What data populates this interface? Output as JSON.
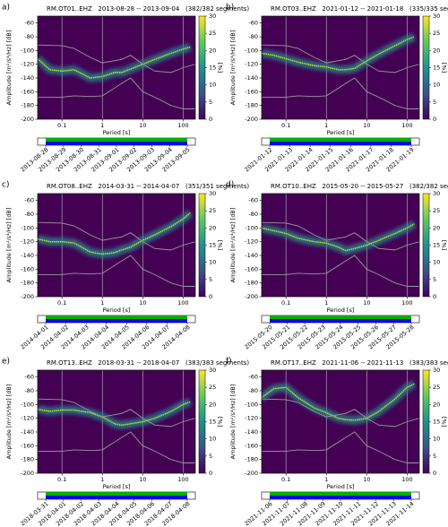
{
  "chart_data": [
    {
      "type": "ppsd",
      "label": "a)",
      "title": "RM.OT01..EHZ   2013-08-28 -- 2013-09-04   (382/382 segments)",
      "xlabel": "Period [s]",
      "ylabel": "Amplitude [m²/s⁴/Hz] [dB]",
      "xscale": "log",
      "xlim": [
        0.025,
        200
      ],
      "xticks": [
        0.1,
        1,
        10,
        100
      ],
      "ylim": [
        -200,
        -50
      ],
      "yticks": [
        -200,
        -180,
        -160,
        -140,
        -120,
        -100,
        -80,
        -60
      ],
      "background": "#440154",
      "cbar": {
        "lim": [
          0,
          30
        ],
        "ticks": [
          0,
          5,
          10,
          15,
          20,
          25,
          30
        ],
        "label": "[%]"
      },
      "series": [
        {
          "color": "#d8e219",
          "x": [
            0.025,
            0.05,
            0.1,
            0.2,
            0.5,
            1,
            2,
            3,
            5,
            10,
            20,
            50,
            100,
            150
          ],
          "values": [
            -112,
            -128,
            -130,
            -128,
            -140,
            -138,
            -132,
            -132,
            -127,
            -120,
            -113,
            -104,
            -98,
            -95
          ]
        },
        {
          "color": "#999999",
          "x": [
            0.025,
            0.1,
            0.2,
            0.5,
            1,
            3,
            5,
            10,
            20,
            50,
            100,
            200
          ],
          "values": [
            -92,
            -93,
            -97,
            -110,
            -118,
            -113,
            -107,
            -120,
            -130,
            -132,
            -125,
            -120
          ]
        },
        {
          "color": "#999999",
          "x": [
            0.025,
            0.1,
            0.2,
            0.5,
            1,
            3,
            5,
            10,
            20,
            50,
            100,
            200
          ],
          "values": [
            -168,
            -168,
            -166,
            -167,
            -166,
            -148,
            -140,
            -160,
            -168,
            -180,
            -185,
            -185
          ]
        }
      ],
      "timeline": [
        "2013-08-28",
        "2013-08-29",
        "2013-08-30",
        "2013-08-31",
        "2013-09-01",
        "2013-09-02",
        "2013-09-03",
        "2013-09-04",
        "2013-09-05"
      ]
    },
    {
      "type": "ppsd",
      "label": "b)",
      "title": "RM.OT03..EHZ   2021-01-12 -- 2021-01-18   (335/335 segments)",
      "xlabel": "Period [s]",
      "ylabel": "Amplitude [m²/s⁴/Hz] [dB]",
      "xscale": "log",
      "xlim": [
        0.025,
        200
      ],
      "xticks": [
        0.1,
        1,
        10,
        100
      ],
      "ylim": [
        -200,
        -50
      ],
      "yticks": [
        -200,
        -180,
        -160,
        -140,
        -120,
        -100,
        -80,
        -60
      ],
      "background": "#440154",
      "cbar": {
        "lim": [
          0,
          30
        ],
        "ticks": [
          0,
          5,
          10,
          15,
          20,
          25,
          30
        ],
        "label": "[%]"
      },
      "series": [
        {
          "color": "#d8e219",
          "x": [
            0.025,
            0.05,
            0.1,
            0.2,
            0.5,
            1,
            2,
            3,
            5,
            10,
            20,
            50,
            100,
            150
          ],
          "values": [
            -104,
            -107,
            -112,
            -117,
            -122,
            -124,
            -128,
            -128,
            -126,
            -115,
            -105,
            -93,
            -84,
            -80
          ]
        },
        {
          "color": "#999999",
          "x": [
            0.025,
            0.1,
            0.2,
            0.5,
            1,
            3,
            5,
            10,
            20,
            50,
            100,
            200
          ],
          "values": [
            -92,
            -93,
            -97,
            -110,
            -118,
            -113,
            -107,
            -120,
            -130,
            -132,
            -125,
            -120
          ]
        },
        {
          "color": "#999999",
          "x": [
            0.025,
            0.1,
            0.2,
            0.5,
            1,
            3,
            5,
            10,
            20,
            50,
            100,
            200
          ],
          "values": [
            -168,
            -168,
            -166,
            -167,
            -166,
            -148,
            -140,
            -160,
            -168,
            -180,
            -185,
            -185
          ]
        }
      ],
      "timeline": [
        "2021-01-12",
        "2021-01-13",
        "2021-01-14",
        "2021-01-15",
        "2021-01-16",
        "2021-01-17",
        "2021-01-18",
        "2021-01-19"
      ]
    },
    {
      "type": "ppsd",
      "label": "c)",
      "title": "RM.OT08..EHZ   2014-03-31 -- 2014-04-07   (351/351 segments)",
      "xlabel": "Period [s]",
      "ylabel": "Amplitude [m²/s⁴/Hz] [dB]",
      "xscale": "log",
      "xlim": [
        0.025,
        200
      ],
      "xticks": [
        0.1,
        1,
        10,
        100
      ],
      "ylim": [
        -200,
        -50
      ],
      "yticks": [
        -200,
        -180,
        -160,
        -140,
        -120,
        -100,
        -80,
        -60
      ],
      "background": "#440154",
      "cbar": {
        "lim": [
          0,
          30
        ],
        "ticks": [
          0,
          5,
          10,
          15,
          20,
          25,
          30
        ],
        "label": "[%]"
      },
      "series": [
        {
          "color": "#d8e219",
          "x": [
            0.025,
            0.05,
            0.1,
            0.2,
            0.5,
            1,
            2,
            3,
            5,
            10,
            20,
            50,
            100,
            150
          ],
          "values": [
            -116,
            -120,
            -120,
            -122,
            -135,
            -138,
            -136,
            -132,
            -128,
            -118,
            -110,
            -98,
            -87,
            -78
          ]
        },
        {
          "color": "#999999",
          "x": [
            0.025,
            0.1,
            0.2,
            0.5,
            1,
            3,
            5,
            10,
            20,
            50,
            100,
            200
          ],
          "values": [
            -92,
            -93,
            -97,
            -110,
            -118,
            -113,
            -107,
            -120,
            -130,
            -132,
            -125,
            -120
          ]
        },
        {
          "color": "#999999",
          "x": [
            0.025,
            0.1,
            0.2,
            0.5,
            1,
            3,
            5,
            10,
            20,
            50,
            100,
            200
          ],
          "values": [
            -168,
            -168,
            -166,
            -167,
            -166,
            -148,
            -140,
            -160,
            -168,
            -180,
            -185,
            -185
          ]
        }
      ],
      "timeline": [
        "2014-04-01",
        "2014-04-02",
        "2014-04-03",
        "2014-04-04",
        "2014-04-05",
        "2014-04-06",
        "2014-04-07",
        "2014-04-08"
      ]
    },
    {
      "type": "ppsd",
      "label": "d)",
      "title": "RM.OT10..EHZ   2015-05-20 -- 2015-05-27   (382/382 segments)",
      "xlabel": "Period [s]",
      "ylabel": "Amplitude [m²/s⁴/Hz] [dB]",
      "xscale": "log",
      "xlim": [
        0.025,
        200
      ],
      "xticks": [
        0.1,
        1,
        10,
        100
      ],
      "ylim": [
        -200,
        -50
      ],
      "yticks": [
        -200,
        -180,
        -160,
        -140,
        -120,
        -100,
        -80,
        -60
      ],
      "background": "#440154",
      "cbar": {
        "lim": [
          0,
          30
        ],
        "ticks": [
          0,
          5,
          10,
          15,
          20,
          25,
          30
        ],
        "label": "[%]"
      },
      "series": [
        {
          "color": "#d8e219",
          "x": [
            0.025,
            0.05,
            0.1,
            0.2,
            0.5,
            1,
            2,
            3,
            5,
            10,
            20,
            50,
            100,
            150
          ],
          "values": [
            -100,
            -104,
            -108,
            -115,
            -120,
            -122,
            -128,
            -133,
            -130,
            -125,
            -118,
            -108,
            -100,
            -94
          ]
        },
        {
          "color": "#999999",
          "x": [
            0.025,
            0.1,
            0.2,
            0.5,
            1,
            3,
            5,
            10,
            20,
            50,
            100,
            200
          ],
          "values": [
            -92,
            -93,
            -97,
            -110,
            -118,
            -113,
            -107,
            -120,
            -130,
            -132,
            -125,
            -120
          ]
        },
        {
          "color": "#999999",
          "x": [
            0.025,
            0.1,
            0.2,
            0.5,
            1,
            3,
            5,
            10,
            20,
            50,
            100,
            200
          ],
          "values": [
            -168,
            -168,
            -166,
            -167,
            -166,
            -148,
            -140,
            -160,
            -168,
            -180,
            -185,
            -185
          ]
        }
      ],
      "timeline": [
        "2015-05-20",
        "2015-05-21",
        "2015-05-22",
        "2015-05-23",
        "2015-05-24",
        "2015-05-25",
        "2015-05-26",
        "2015-05-27",
        "2015-05-28"
      ]
    },
    {
      "type": "ppsd",
      "label": "e)",
      "title": "RM.OT13..EHZ   2018-03-31 -- 2018-04-07   (383/383 segments)",
      "xlabel": "Period [s]",
      "ylabel": "Amplitude [m²/s⁴/Hz] [dB]",
      "xscale": "log",
      "xlim": [
        0.025,
        200
      ],
      "xticks": [
        0.1,
        1,
        10,
        100
      ],
      "ylim": [
        -200,
        -50
      ],
      "yticks": [
        -200,
        -180,
        -160,
        -140,
        -120,
        -100,
        -80,
        -60
      ],
      "background": "#440154",
      "cbar": {
        "lim": [
          0,
          30
        ],
        "ticks": [
          0,
          5,
          10,
          15,
          20,
          25,
          30
        ],
        "label": "[%]"
      },
      "series": [
        {
          "color": "#d8e219",
          "x": [
            0.025,
            0.05,
            0.1,
            0.2,
            0.5,
            1,
            2,
            3,
            5,
            10,
            20,
            50,
            100,
            150
          ],
          "values": [
            -107,
            -110,
            -108,
            -108,
            -112,
            -118,
            -128,
            -130,
            -128,
            -125,
            -120,
            -110,
            -100,
            -96
          ]
        },
        {
          "color": "#999999",
          "x": [
            0.025,
            0.1,
            0.2,
            0.5,
            1,
            3,
            5,
            10,
            20,
            50,
            100,
            200
          ],
          "values": [
            -92,
            -93,
            -97,
            -110,
            -118,
            -113,
            -107,
            -120,
            -130,
            -132,
            -125,
            -120
          ]
        },
        {
          "color": "#999999",
          "x": [
            0.025,
            0.1,
            0.2,
            0.5,
            1,
            3,
            5,
            10,
            20,
            50,
            100,
            200
          ],
          "values": [
            -168,
            -168,
            -166,
            -167,
            -166,
            -148,
            -140,
            -160,
            -168,
            -180,
            -185,
            -185
          ]
        }
      ],
      "timeline": [
        "2018-03-31",
        "2018-04-01",
        "2018-04-02",
        "2018-04-03",
        "2018-04-04",
        "2018-04-05",
        "2018-04-06",
        "2018-04-07",
        "2018-04-08"
      ]
    },
    {
      "type": "ppsd",
      "label": "f)",
      "title": "RM.OT17..EHZ   2021-11-06 -- 2021-11-13   (383/383 segments)",
      "xlabel": "Period [s]",
      "ylabel": "Amplitude [m²/s⁴/Hz] [dB]",
      "xscale": "log",
      "xlim": [
        0.025,
        200
      ],
      "xticks": [
        0.1,
        1,
        10,
        100
      ],
      "ylim": [
        -200,
        -50
      ],
      "yticks": [
        -200,
        -180,
        -160,
        -140,
        -120,
        -100,
        -80,
        -60
      ],
      "background": "#440154",
      "cbar": {
        "lim": [
          0,
          30
        ],
        "ticks": [
          0,
          5,
          10,
          15,
          20,
          25,
          30
        ],
        "label": "[%]"
      },
      "series": [
        {
          "color": "#d8e219",
          "x": [
            0.025,
            0.05,
            0.1,
            0.2,
            0.5,
            1,
            2,
            3,
            5,
            10,
            20,
            50,
            100,
            150
          ],
          "values": [
            -90,
            -77,
            -75,
            -90,
            -105,
            -112,
            -120,
            -122,
            -123,
            -120,
            -110,
            -92,
            -75,
            -70
          ]
        },
        {
          "color": "#999999",
          "x": [
            0.025,
            0.1,
            0.2,
            0.5,
            1,
            3,
            5,
            10,
            20,
            50,
            100,
            200
          ],
          "values": [
            -92,
            -93,
            -97,
            -110,
            -118,
            -113,
            -107,
            -120,
            -130,
            -132,
            -125,
            -120
          ]
        },
        {
          "color": "#999999",
          "x": [
            0.025,
            0.1,
            0.2,
            0.5,
            1,
            3,
            5,
            10,
            20,
            50,
            100,
            200
          ],
          "values": [
            -168,
            -168,
            -166,
            -167,
            -166,
            -148,
            -140,
            -160,
            -168,
            -180,
            -185,
            -185
          ]
        }
      ],
      "timeline": [
        "2021-11-06",
        "2021-11-07",
        "2021-11-08",
        "2021-11-09",
        "2021-11-10",
        "2021-11-11",
        "2021-11-12",
        "2021-11-13",
        "2021-11-14"
      ]
    }
  ]
}
